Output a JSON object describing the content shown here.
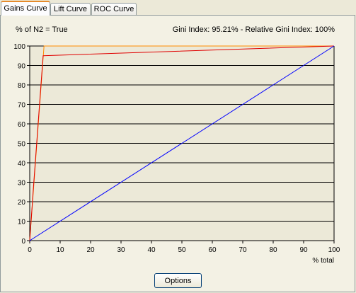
{
  "tabs": [
    {
      "label": "Gains Curve",
      "active": true
    },
    {
      "label": "Lift Curve",
      "active": false
    },
    {
      "label": "ROC Curve",
      "active": false
    }
  ],
  "header": {
    "left_label": "% of N2 = True",
    "gini_text": "Gini Index: 95.21% - Relative Gini Index: 100%"
  },
  "options_button": "Options",
  "chart_data": {
    "type": "line",
    "title": "",
    "xlabel": "% total",
    "ylabel": "% of N2 = True",
    "xlim": [
      0,
      100
    ],
    "ylim": [
      0,
      100
    ],
    "xticks": [
      0,
      10,
      20,
      30,
      40,
      50,
      60,
      70,
      80,
      90,
      100
    ],
    "yticks": [
      0,
      10,
      20,
      30,
      40,
      50,
      60,
      70,
      80,
      90,
      100
    ],
    "grid": "horizontal",
    "series": [
      {
        "color": "#ff8c00",
        "x": [
          0,
          4.7,
          4.7,
          100
        ],
        "y": [
          0,
          100,
          100,
          100
        ]
      },
      {
        "color": "#e00000",
        "x": [
          0,
          1.2,
          4.4,
          100
        ],
        "y": [
          0,
          27,
          95,
          100
        ]
      },
      {
        "color": "#0000ff",
        "x": [
          0,
          100
        ],
        "y": [
          0,
          100
        ]
      }
    ],
    "colors": {
      "plot_background": "#ece9d8",
      "grid": "#000000"
    }
  }
}
